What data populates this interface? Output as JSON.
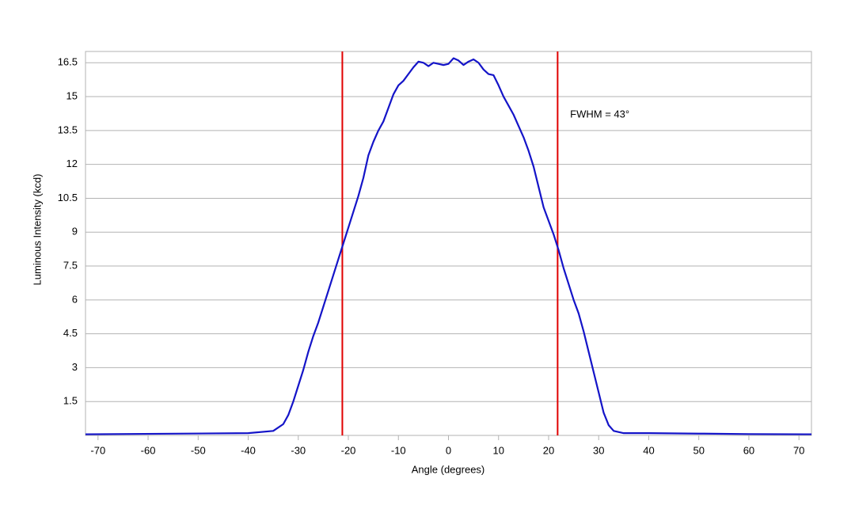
{
  "chart_data": {
    "type": "line",
    "xlabel": "Angle (degrees)",
    "ylabel": "Luminous Intensity (kcd)",
    "x": [
      -72.5,
      -40,
      -35,
      -33,
      -32,
      -31,
      -30,
      -29,
      -28,
      -27,
      -26,
      -25,
      -24,
      -23,
      -22,
      -21,
      -20,
      -19,
      -18,
      -17,
      -16,
      -15,
      -14,
      -13,
      -12,
      -11,
      -10,
      -9,
      -8,
      -7,
      -6,
      -5,
      -4,
      -3,
      -2,
      -1,
      0,
      1,
      2,
      3,
      4,
      5,
      6,
      7,
      8,
      9,
      10,
      11,
      12,
      13,
      14,
      15,
      16,
      17,
      18,
      19,
      20,
      21,
      22,
      23,
      24,
      25,
      26,
      27,
      28,
      29,
      30,
      31,
      32,
      33,
      35,
      40,
      50,
      60,
      72.5
    ],
    "series": [
      {
        "name": "Luminous Intensity",
        "color": "#1414c8",
        "values": [
          0.05,
          0.1,
          0.2,
          0.5,
          0.9,
          1.5,
          2.2,
          2.9,
          3.7,
          4.4,
          5.0,
          5.7,
          6.4,
          7.1,
          7.8,
          8.5,
          9.2,
          9.9,
          10.6,
          11.4,
          12.4,
          13.0,
          13.5,
          13.9,
          14.5,
          15.1,
          15.5,
          15.7,
          16.0,
          16.3,
          16.55,
          16.5,
          16.35,
          16.5,
          16.45,
          16.4,
          16.45,
          16.7,
          16.6,
          16.4,
          16.55,
          16.65,
          16.5,
          16.2,
          16.0,
          15.95,
          15.5,
          15.0,
          14.6,
          14.2,
          13.7,
          13.2,
          12.6,
          11.9,
          11.0,
          10.1,
          9.5,
          8.9,
          8.2,
          7.4,
          6.7,
          6.0,
          5.4,
          4.6,
          3.7,
          2.8,
          1.9,
          1.0,
          0.45,
          0.2,
          0.1,
          0.1,
          0.08,
          0.06,
          0.05
        ]
      }
    ],
    "vlines": [
      -21.2,
      21.8
    ],
    "vline_color": "#e00000",
    "annotation": {
      "text": "FWHM = 43°",
      "x": 24.3,
      "y": 14.2
    },
    "xlim": [
      -72.5,
      72.5
    ],
    "xticks": [
      -70,
      -60,
      -50,
      -40,
      -30,
      -20,
      -10,
      0,
      10,
      20,
      30,
      40,
      50,
      60,
      70
    ],
    "ylim": [
      0,
      17
    ],
    "yticks": [
      1.5,
      3,
      4.5,
      6,
      7.5,
      9,
      10.5,
      12,
      13.5,
      15,
      16.5
    ],
    "grid": true
  }
}
